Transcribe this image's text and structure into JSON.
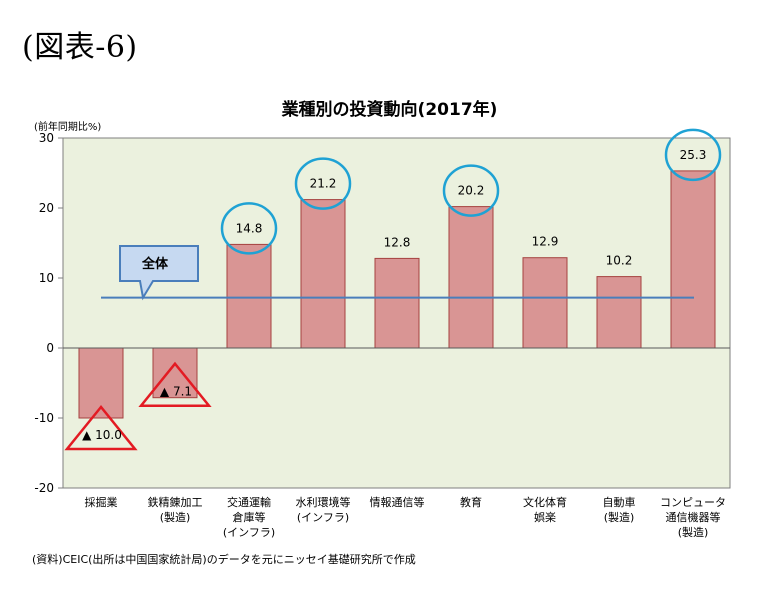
{
  "figure_label": "(図表-6)",
  "unit_label": "(前年同期比%)",
  "source": "(資料)CEIC(出所は中国国家統計局)のデータを元にニッセイ基礎研究所で作成",
  "colors": {
    "bar_fill": "#d99594",
    "bar_stroke": "#a5413f",
    "plot_bg": "#ebf1de",
    "overall_line": "#4a7ebb",
    "circle": "#1fa2d4",
    "triangle": "#e31b23",
    "callout_fill": "#c6d9f1",
    "callout_stroke": "#4a7ebb"
  },
  "chart_data": {
    "type": "bar",
    "title": "業種別の投資動向(2017年)",
    "ylim": [
      -20,
      30
    ],
    "yticks": [
      -20,
      -10,
      0,
      10,
      20,
      30
    ],
    "categories": [
      [
        "採掘業"
      ],
      [
        "鉄精錬加工",
        "(製造)"
      ],
      [
        "交通運輸",
        "倉庫等",
        "(インフラ)"
      ],
      [
        "水利環境等",
        "(インフラ)"
      ],
      [
        "情報通信等"
      ],
      [
        "教育"
      ],
      [
        "文化体育",
        "娯楽"
      ],
      [
        "自動車",
        "(製造)"
      ],
      [
        "コンピュータ",
        "通信機器等",
        "(製造)"
      ]
    ],
    "values": [
      -10.0,
      -7.1,
      14.8,
      21.2,
      12.8,
      20.2,
      12.9,
      10.2,
      25.3
    ],
    "value_labels": [
      "▲ 10.0",
      "▲ 7.1",
      "14.8",
      "21.2",
      "12.8",
      "20.2",
      "12.9",
      "10.2",
      "25.3"
    ],
    "circled": [
      2,
      3,
      5,
      8
    ],
    "triangled": [
      0,
      1
    ],
    "overall_label": "全体",
    "overall_value": 7.2
  }
}
